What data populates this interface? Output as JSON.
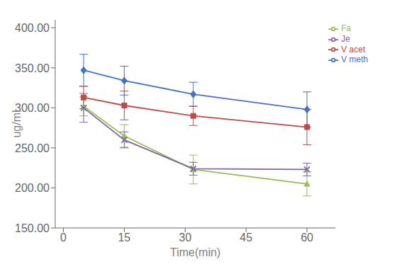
{
  "chart_data": {
    "type": "line",
    "xlabel": "Time(min)",
    "ylabel": "ug/ml",
    "x": [
      5,
      15,
      32,
      60
    ],
    "xlim": [
      -2,
      67
    ],
    "xticks": [
      0,
      15,
      30,
      45,
      60
    ],
    "ylim": [
      150,
      410
    ],
    "yticks": [
      {
        "value": 150,
        "label": "150.00"
      },
      {
        "value": 200,
        "label": "200.00"
      },
      {
        "value": 250,
        "label": "250.00"
      },
      {
        "value": 300,
        "label": "300.00"
      },
      {
        "value": 350,
        "label": "350.00"
      },
      {
        "value": 400,
        "label": "400.00"
      }
    ],
    "grid": false,
    "legend": "upper right",
    "series": [
      {
        "name": "V meth",
        "color": "#4472C4",
        "marker": "diamond",
        "values": [
          347,
          334,
          317,
          298
        ],
        "errors": [
          20,
          18,
          15,
          22
        ]
      },
      {
        "name": "V acet",
        "color": "#BE4B48",
        "marker": "square",
        "values": [
          313,
          303,
          290,
          276
        ],
        "errors": [
          14,
          18,
          12,
          22
        ]
      },
      {
        "name": "Fa",
        "color": "#9BBB59",
        "marker": "triangle",
        "values": [
          302,
          265,
          223,
          205
        ],
        "errors": [
          12,
          14,
          18,
          15
        ]
      },
      {
        "name": "Je",
        "color": "#7F66A0",
        "marker": "x",
        "values": [
          300,
          260,
          224,
          223
        ],
        "errors": [
          18,
          10,
          8,
          8
        ]
      }
    ]
  }
}
